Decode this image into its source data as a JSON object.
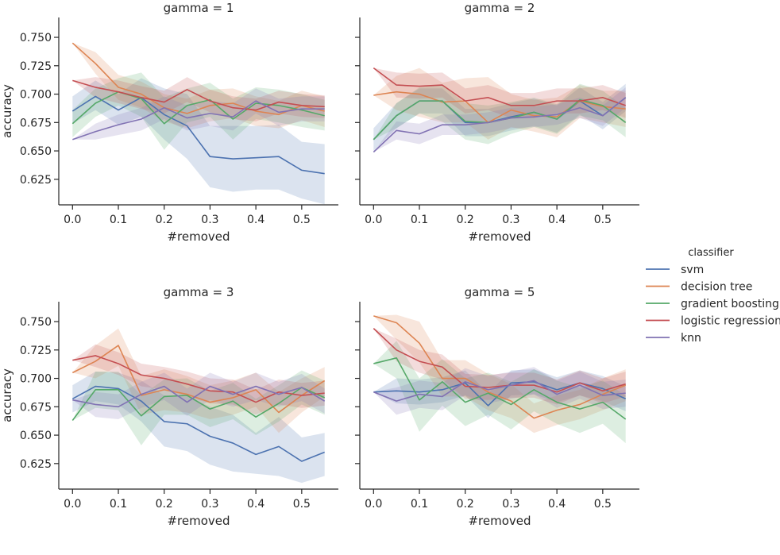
{
  "chart_data": {
    "type": "line",
    "legend": {
      "title": "classifier",
      "placement": "right",
      "entries": [
        "svm",
        "decision tree",
        "gradient boosting",
        "logistic regression",
        "knn"
      ]
    },
    "colors": {
      "svm": "#4c72b0",
      "decision tree": "#dd8452",
      "gradient boosting": "#55a868",
      "logistic regression": "#c44e52",
      "knn": "#8172b3"
    },
    "x": [
      0.0,
      0.05,
      0.1,
      0.15,
      0.2,
      0.25,
      0.3,
      0.35,
      0.4,
      0.45,
      0.5,
      0.55
    ],
    "xlim": [
      -0.03,
      0.58
    ],
    "ylim": [
      0.6025,
      0.7675
    ],
    "xticks": [
      0.0,
      0.1,
      0.2,
      0.3,
      0.4,
      0.5
    ],
    "xtick_labels": [
      "0.0",
      "0.1",
      "0.2",
      "0.3",
      "0.4",
      "0.5"
    ],
    "yticks": [
      0.625,
      0.65,
      0.675,
      0.7,
      0.725,
      0.75
    ],
    "ytick_labels": [
      "0.625",
      "0.650",
      "0.675",
      "0.700",
      "0.725",
      "0.750"
    ],
    "xlabel": "#removed",
    "ylabel": "accuracy",
    "grid": false,
    "panels": [
      {
        "title": "gamma = 1",
        "series": [
          {
            "name": "svm",
            "values": [
              0.685,
              0.698,
              0.686,
              0.697,
              0.682,
              0.672,
              0.645,
              0.643,
              0.644,
              0.645,
              0.633,
              0.63
            ],
            "lower": [
              0.674,
              0.686,
              0.673,
              0.68,
              0.66,
              0.643,
              0.618,
              0.614,
              0.616,
              0.616,
              0.608,
              0.603
            ],
            "upper": [
              0.698,
              0.712,
              0.7,
              0.714,
              0.705,
              0.7,
              0.672,
              0.672,
              0.672,
              0.673,
              0.658,
              0.656
            ]
          },
          {
            "name": "decision tree",
            "values": [
              0.745,
              0.727,
              0.706,
              0.7,
              0.688,
              0.683,
              0.69,
              0.692,
              0.685,
              0.682,
              0.69,
              0.685
            ],
            "lower": [
              0.745,
              0.718,
              0.695,
              0.688,
              0.676,
              0.67,
              0.676,
              0.679,
              0.672,
              0.67,
              0.677,
              0.671
            ],
            "upper": [
              0.745,
              0.737,
              0.717,
              0.711,
              0.7,
              0.696,
              0.704,
              0.705,
              0.698,
              0.694,
              0.703,
              0.698
            ]
          },
          {
            "name": "gradient boosting",
            "values": [
              0.674,
              0.692,
              0.702,
              0.696,
              0.674,
              0.69,
              0.695,
              0.678,
              0.692,
              0.69,
              0.686,
              0.681
            ],
            "lower": [
              0.662,
              0.68,
              0.69,
              0.68,
              0.651,
              0.675,
              0.68,
              0.66,
              0.678,
              0.675,
              0.671,
              0.668
            ],
            "upper": [
              0.686,
              0.705,
              0.714,
              0.719,
              0.697,
              0.705,
              0.71,
              0.696,
              0.706,
              0.704,
              0.7,
              0.695
            ]
          },
          {
            "name": "logistic regression",
            "values": [
              0.712,
              0.706,
              0.702,
              0.697,
              0.693,
              0.704,
              0.694,
              0.688,
              0.686,
              0.693,
              0.69,
              0.689
            ],
            "lower": [
              0.712,
              0.697,
              0.692,
              0.687,
              0.683,
              0.693,
              0.684,
              0.678,
              0.676,
              0.683,
              0.68,
              0.679
            ],
            "upper": [
              0.712,
              0.715,
              0.712,
              0.707,
              0.703,
              0.715,
              0.704,
              0.698,
              0.696,
              0.703,
              0.7,
              0.699
            ]
          },
          {
            "name": "knn",
            "values": [
              0.66,
              0.667,
              0.673,
              0.678,
              0.688,
              0.679,
              0.683,
              0.68,
              0.694,
              0.684,
              0.687,
              0.687
            ],
            "lower": [
              0.66,
              0.66,
              0.664,
              0.668,
              0.678,
              0.668,
              0.672,
              0.668,
              0.683,
              0.672,
              0.676,
              0.676
            ],
            "upper": [
              0.66,
              0.674,
              0.682,
              0.688,
              0.698,
              0.69,
              0.694,
              0.692,
              0.705,
              0.696,
              0.698,
              0.698
            ]
          }
        ]
      },
      {
        "title": "gamma = 2",
        "series": [
          {
            "name": "svm",
            "values": [
              0.66,
              0.681,
              0.694,
              0.694,
              0.675,
              0.675,
              0.68,
              0.684,
              0.678,
              0.694,
              0.681,
              0.697
            ],
            "lower": [
              0.65,
              0.67,
              0.683,
              0.683,
              0.663,
              0.663,
              0.668,
              0.672,
              0.666,
              0.682,
              0.669,
              0.685
            ],
            "upper": [
              0.67,
              0.692,
              0.705,
              0.705,
              0.687,
              0.687,
              0.692,
              0.696,
              0.69,
              0.706,
              0.693,
              0.709
            ]
          },
          {
            "name": "decision tree",
            "values": [
              0.699,
              0.702,
              0.7,
              0.693,
              0.694,
              0.675,
              0.686,
              0.681,
              0.68,
              0.694,
              0.689,
              0.687
            ],
            "lower": [
              0.699,
              0.686,
              0.68,
              0.675,
              0.675,
              0.66,
              0.671,
              0.667,
              0.662,
              0.679,
              0.675,
              0.671
            ],
            "upper": [
              0.699,
              0.716,
              0.723,
              0.71,
              0.714,
              0.715,
              0.7,
              0.695,
              0.697,
              0.708,
              0.703,
              0.703
            ]
          },
          {
            "name": "gradient boosting",
            "values": [
              0.66,
              0.681,
              0.694,
              0.694,
              0.676,
              0.675,
              0.679,
              0.684,
              0.678,
              0.695,
              0.69,
              0.675
            ],
            "lower": [
              0.66,
              0.67,
              0.683,
              0.676,
              0.66,
              0.656,
              0.665,
              0.671,
              0.665,
              0.681,
              0.677,
              0.662
            ],
            "upper": [
              0.66,
              0.692,
              0.706,
              0.708,
              0.692,
              0.69,
              0.693,
              0.697,
              0.691,
              0.709,
              0.703,
              0.688
            ]
          },
          {
            "name": "logistic regression",
            "values": [
              0.723,
              0.708,
              0.707,
              0.708,
              0.694,
              0.697,
              0.69,
              0.69,
              0.694,
              0.694,
              0.697,
              0.69
            ],
            "lower": [
              0.723,
              0.697,
              0.696,
              0.697,
              0.683,
              0.686,
              0.679,
              0.679,
              0.683,
              0.683,
              0.686,
              0.679
            ],
            "upper": [
              0.723,
              0.719,
              0.718,
              0.719,
              0.705,
              0.708,
              0.701,
              0.701,
              0.705,
              0.705,
              0.708,
              0.701
            ]
          },
          {
            "name": "knn",
            "values": [
              0.649,
              0.668,
              0.665,
              0.673,
              0.673,
              0.675,
              0.679,
              0.68,
              0.682,
              0.688,
              0.681,
              0.697
            ],
            "lower": [
              0.649,
              0.66,
              0.656,
              0.664,
              0.664,
              0.666,
              0.67,
              0.671,
              0.673,
              0.679,
              0.672,
              0.688
            ],
            "upper": [
              0.649,
              0.676,
              0.674,
              0.682,
              0.682,
              0.684,
              0.688,
              0.689,
              0.691,
              0.697,
              0.69,
              0.706
            ]
          }
        ]
      },
      {
        "title": "gamma = 3",
        "series": [
          {
            "name": "svm",
            "values": [
              0.682,
              0.693,
              0.691,
              0.68,
              0.662,
              0.66,
              0.649,
              0.643,
              0.633,
              0.64,
              0.627,
              0.635
            ],
            "lower": [
              0.67,
              0.68,
              0.677,
              0.662,
              0.64,
              0.636,
              0.624,
              0.618,
              0.616,
              0.614,
              0.608,
              0.614
            ],
            "upper": [
              0.694,
              0.706,
              0.705,
              0.698,
              0.685,
              0.684,
              0.675,
              0.668,
              0.652,
              0.666,
              0.648,
              0.652
            ]
          },
          {
            "name": "decision tree",
            "values": [
              0.705,
              0.715,
              0.729,
              0.685,
              0.69,
              0.686,
              0.679,
              0.683,
              0.69,
              0.67,
              0.685,
              0.698
            ],
            "lower": [
              0.705,
              0.7,
              0.711,
              0.668,
              0.672,
              0.67,
              0.664,
              0.668,
              0.675,
              0.652,
              0.67,
              0.684
            ],
            "upper": [
              0.705,
              0.729,
              0.744,
              0.702,
              0.708,
              0.702,
              0.694,
              0.698,
              0.705,
              0.688,
              0.7,
              0.71
            ]
          },
          {
            "name": "gradient boosting",
            "values": [
              0.663,
              0.69,
              0.69,
              0.667,
              0.684,
              0.685,
              0.673,
              0.68,
              0.666,
              0.678,
              0.692,
              0.683
            ],
            "lower": [
              0.663,
              0.674,
              0.672,
              0.641,
              0.668,
              0.668,
              0.657,
              0.664,
              0.65,
              0.662,
              0.677,
              0.668
            ],
            "upper": [
              0.663,
              0.706,
              0.706,
              0.685,
              0.699,
              0.7,
              0.689,
              0.696,
              0.682,
              0.694,
              0.707,
              0.698
            ]
          },
          {
            "name": "logistic regression",
            "values": [
              0.716,
              0.72,
              0.713,
              0.703,
              0.7,
              0.695,
              0.689,
              0.688,
              0.679,
              0.688,
              0.685,
              0.687
            ],
            "lower": [
              0.716,
              0.71,
              0.703,
              0.693,
              0.69,
              0.684,
              0.678,
              0.677,
              0.668,
              0.677,
              0.674,
              0.676
            ],
            "upper": [
              0.716,
              0.73,
              0.723,
              0.713,
              0.71,
              0.706,
              0.7,
              0.699,
              0.69,
              0.699,
              0.696,
              0.698
            ]
          },
          {
            "name": "knn",
            "values": [
              0.681,
              0.677,
              0.675,
              0.686,
              0.693,
              0.679,
              0.693,
              0.686,
              0.693,
              0.686,
              0.692,
              0.68
            ],
            "lower": [
              0.681,
              0.666,
              0.664,
              0.674,
              0.681,
              0.667,
              0.681,
              0.675,
              0.681,
              0.675,
              0.68,
              0.669
            ],
            "upper": [
              0.681,
              0.688,
              0.686,
              0.697,
              0.705,
              0.691,
              0.705,
              0.697,
              0.705,
              0.697,
              0.704,
              0.691
            ]
          }
        ]
      },
      {
        "title": "gamma = 5",
        "series": [
          {
            "name": "svm",
            "values": [
              0.688,
              0.689,
              0.688,
              0.69,
              0.696,
              0.676,
              0.696,
              0.697,
              0.69,
              0.696,
              0.691,
              0.682
            ],
            "lower": [
              0.688,
              0.678,
              0.677,
              0.679,
              0.685,
              0.665,
              0.685,
              0.686,
              0.679,
              0.685,
              0.68,
              0.671
            ],
            "upper": [
              0.688,
              0.7,
              0.699,
              0.701,
              0.707,
              0.687,
              0.707,
              0.708,
              0.701,
              0.707,
              0.702,
              0.693
            ]
          },
          {
            "name": "decision tree",
            "values": [
              0.755,
              0.749,
              0.731,
              0.7,
              0.7,
              0.688,
              0.68,
              0.665,
              0.672,
              0.677,
              0.686,
              0.694
            ],
            "lower": [
              0.755,
              0.734,
              0.714,
              0.684,
              0.684,
              0.672,
              0.665,
              0.652,
              0.659,
              0.664,
              0.672,
              0.68
            ],
            "upper": [
              0.755,
              0.756,
              0.75,
              0.716,
              0.716,
              0.704,
              0.695,
              0.678,
              0.685,
              0.69,
              0.7,
              0.708
            ]
          },
          {
            "name": "gradient boosting",
            "values": [
              0.713,
              0.718,
              0.681,
              0.697,
              0.679,
              0.687,
              0.677,
              0.69,
              0.679,
              0.673,
              0.679,
              0.664
            ],
            "lower": [
              0.713,
              0.7,
              0.653,
              0.676,
              0.658,
              0.668,
              0.655,
              0.671,
              0.66,
              0.652,
              0.66,
              0.643
            ],
            "upper": [
              0.713,
              0.733,
              0.7,
              0.717,
              0.7,
              0.705,
              0.697,
              0.708,
              0.698,
              0.692,
              0.698,
              0.685
            ]
          },
          {
            "name": "logistic regression",
            "values": [
              0.744,
              0.725,
              0.715,
              0.71,
              0.693,
              0.692,
              0.694,
              0.694,
              0.688,
              0.696,
              0.689,
              0.695
            ],
            "lower": [
              0.744,
              0.715,
              0.705,
              0.699,
              0.682,
              0.681,
              0.683,
              0.683,
              0.677,
              0.685,
              0.678,
              0.684
            ],
            "upper": [
              0.744,
              0.735,
              0.725,
              0.721,
              0.704,
              0.703,
              0.705,
              0.705,
              0.699,
              0.707,
              0.7,
              0.706
            ]
          },
          {
            "name": "knn",
            "values": [
              0.688,
              0.68,
              0.686,
              0.684,
              0.697,
              0.69,
              0.694,
              0.698,
              0.686,
              0.694,
              0.685,
              0.687
            ],
            "lower": [
              0.688,
              0.668,
              0.674,
              0.672,
              0.685,
              0.678,
              0.682,
              0.686,
              0.674,
              0.682,
              0.673,
              0.675
            ],
            "upper": [
              0.688,
              0.692,
              0.698,
              0.696,
              0.709,
              0.702,
              0.706,
              0.71,
              0.698,
              0.706,
              0.697,
              0.699
            ]
          }
        ]
      }
    ]
  }
}
